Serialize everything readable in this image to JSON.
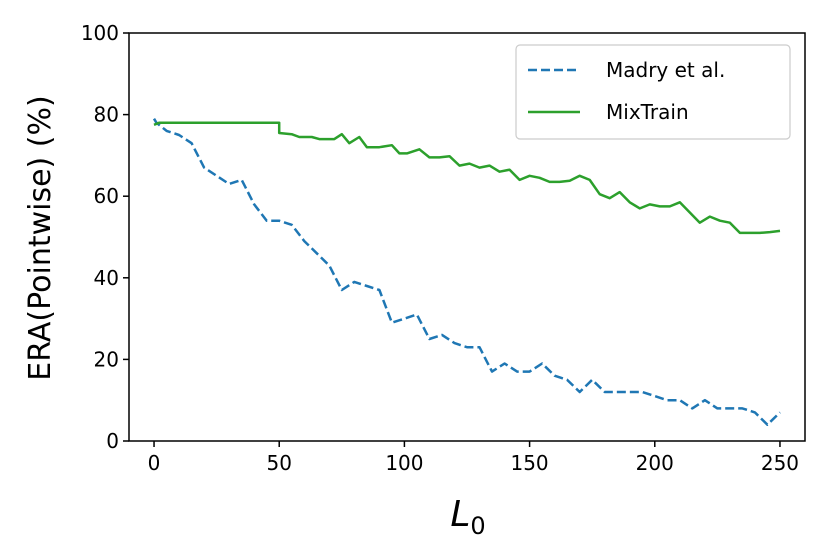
{
  "chart_data": {
    "type": "line",
    "xlabel_base": "L",
    "xlabel_sub": "0",
    "ylabel": "ERA(Pointwise) (%)",
    "xlim": [
      -10,
      260
    ],
    "ylim": [
      0,
      100
    ],
    "xticks": [
      0,
      50,
      100,
      150,
      200,
      250
    ],
    "yticks": [
      0,
      20,
      40,
      60,
      80,
      100
    ],
    "grid": false,
    "legend_position": "top-right",
    "series": [
      {
        "name": "Madry et al.",
        "color": "#1f77b4",
        "style": "dashed",
        "x": [
          0,
          1,
          5,
          10,
          15,
          20,
          25,
          30,
          35,
          40,
          45,
          50,
          55,
          60,
          65,
          70,
          75,
          80,
          85,
          90,
          95,
          100,
          105,
          110,
          115,
          120,
          125,
          130,
          135,
          140,
          145,
          150,
          155,
          160,
          165,
          170,
          175,
          180,
          185,
          190,
          195,
          200,
          205,
          210,
          215,
          220,
          225,
          230,
          235,
          240,
          245,
          250
        ],
        "y": [
          79,
          78,
          76,
          75,
          73,
          67,
          65,
          63,
          64,
          58,
          54,
          54,
          53,
          49,
          46,
          43,
          37,
          39,
          38,
          37,
          29,
          30,
          31,
          25,
          26,
          24,
          23,
          23,
          17,
          19,
          17,
          17,
          19,
          16,
          15,
          12,
          15,
          12,
          12,
          12,
          12,
          11,
          10,
          10,
          8,
          10,
          8,
          8,
          8,
          7,
          4,
          7
        ]
      },
      {
        "name": "MixTrain",
        "color": "#2ca02c",
        "style": "solid",
        "x": [
          0,
          2,
          50,
          50,
          55,
          58,
          63,
          66,
          70,
          72,
          75,
          78,
          82,
          85,
          90,
          95,
          98,
          101,
          106,
          110,
          114,
          118,
          122,
          126,
          130,
          134,
          138,
          142,
          146,
          150,
          154,
          158,
          162,
          166,
          170,
          174,
          178,
          182,
          186,
          190,
          194,
          198,
          202,
          206,
          210,
          214,
          218,
          222,
          226,
          230,
          234,
          238,
          242,
          246,
          250
        ],
        "y": [
          77.5,
          78,
          78,
          75.5,
          75.2,
          74.5,
          74.5,
          74,
          74,
          74,
          75.2,
          73,
          74.5,
          72,
          72,
          72.5,
          70.5,
          70.5,
          71.5,
          69.5,
          69.5,
          69.8,
          67.5,
          68,
          67,
          67.5,
          66,
          66.5,
          64,
          65,
          64.5,
          63.5,
          63.5,
          63.8,
          65,
          64,
          60.5,
          59.5,
          61,
          58.5,
          57,
          58,
          57.5,
          57.5,
          58.5,
          56,
          53.5,
          55,
          54,
          53.5,
          51,
          51,
          51,
          51.2,
          51.5
        ]
      }
    ]
  }
}
